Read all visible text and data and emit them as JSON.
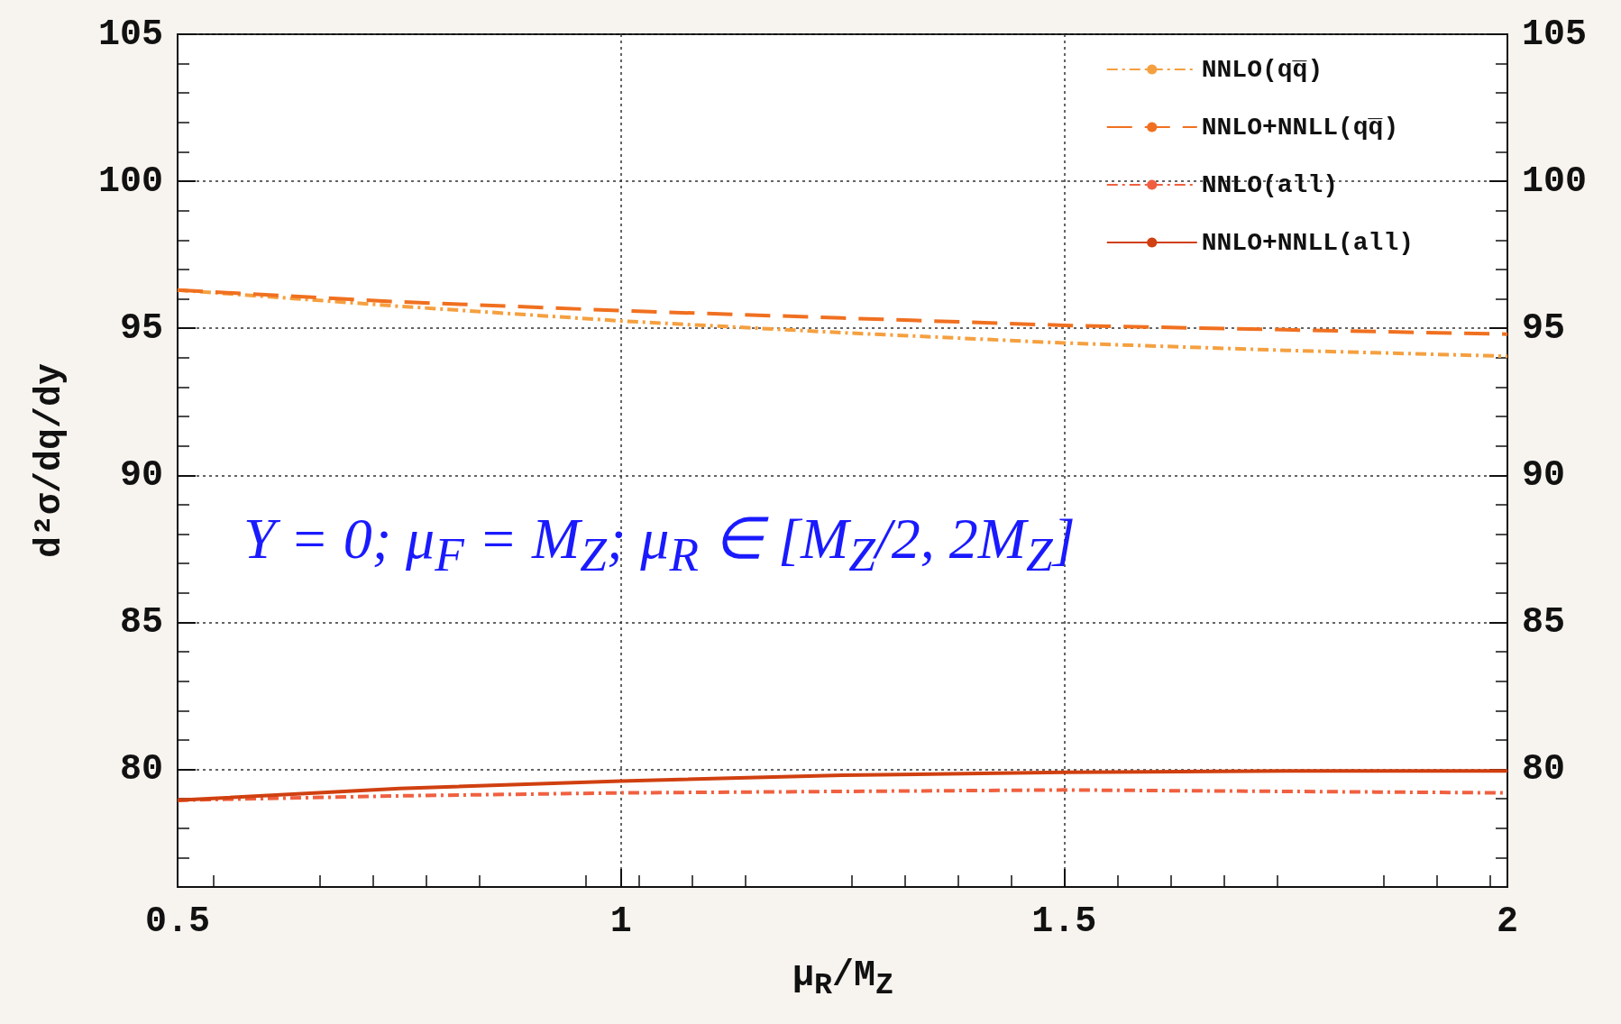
{
  "chart_data": {
    "type": "line",
    "xlabel": "μ$_{R}$/M$_{Z}$",
    "ylabel": "d²σ/dq/dy",
    "annotations": [
      "Y = 0; μ$_{F}$ = M$_{Z}$; μ$_{R}$ ∈ [M$_{Z}$/2, 2M$_{Z}$]"
    ],
    "x": [
      0.5,
      0.75,
      1,
      1.25,
      1.5,
      1.75,
      2
    ],
    "series": [
      {
        "name": "NNLO(qq̅)",
        "color": "#f5a040",
        "line_style": "dotted",
        "values": [
          96.3,
          95.75,
          95.25,
          94.85,
          94.5,
          94.25,
          94.05
        ]
      },
      {
        "name": "NNLO+NNLL(qq̅)",
        "color": "#f07020",
        "line_style": "dashed",
        "values": [
          96.3,
          95.9,
          95.6,
          95.35,
          95.1,
          94.95,
          94.8
        ]
      },
      {
        "name": "NNLO(all)",
        "color": "#f06040",
        "line_style": "dotted",
        "values": [
          78.95,
          79.1,
          79.2,
          79.25,
          79.3,
          79.25,
          79.2
        ]
      },
      {
        "name": "NNLO+NNLL(all)",
        "color": "#d04010",
        "line_style": "solid",
        "values": [
          78.95,
          79.35,
          79.6,
          79.8,
          79.9,
          79.95,
          79.95
        ]
      }
    ],
    "xlim": [
      0.5,
      2
    ],
    "xticks": [
      0.5,
      1,
      1.5,
      2
    ],
    "ylim": [
      76,
      105
    ],
    "yticks": [
      80,
      85,
      90,
      95,
      100,
      105
    ],
    "y2lim": [
      76,
      105
    ],
    "y2ticks": [
      80,
      85,
      90,
      95,
      100,
      105
    ],
    "grid": true,
    "legend": "top right",
    "marker": "none"
  }
}
